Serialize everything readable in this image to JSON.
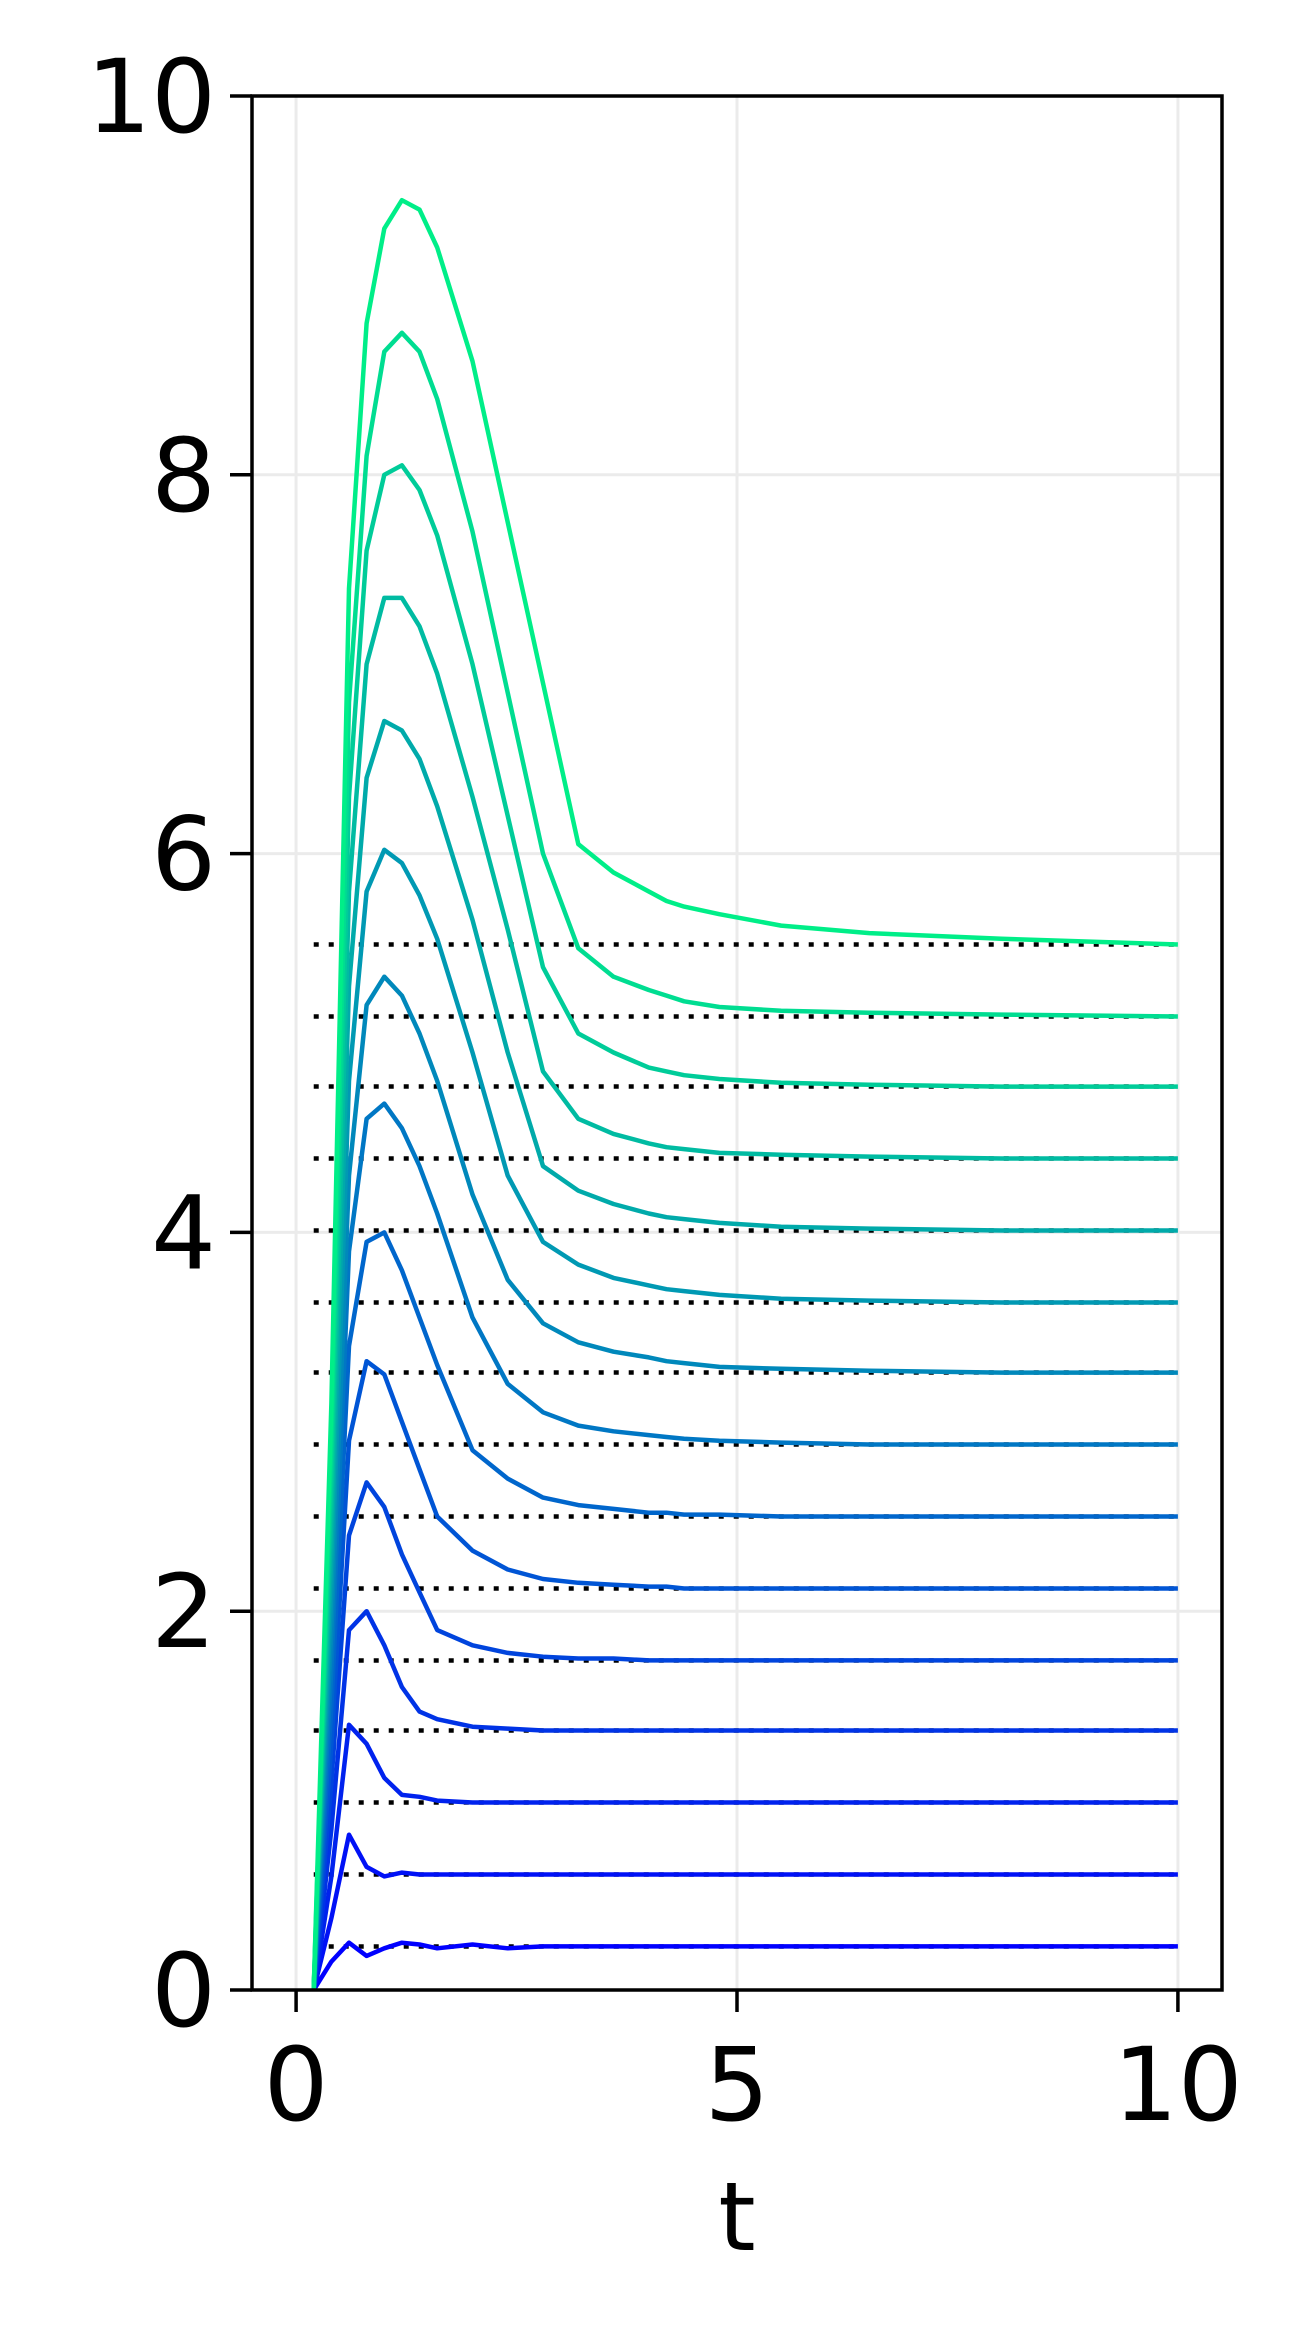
{
  "chart_data": {
    "type": "line",
    "title": "",
    "xlabel": "t",
    "ylabel": "",
    "xlim": [
      -0.5,
      10.5
    ],
    "ylim": [
      0,
      10
    ],
    "xticks": [
      0,
      5,
      10
    ],
    "yticks": [
      0,
      2,
      4,
      6,
      8,
      10
    ],
    "xtick_labels": [
      "0",
      "5",
      "10"
    ],
    "ytick_labels": [
      "0",
      "2",
      "4",
      "6",
      "8",
      "10"
    ],
    "grid": true,
    "legend": "none",
    "colormap": "winter (blue to green)",
    "reference_style": "black dotted horizontal lines from t=0.2 to t=10",
    "t": [
      0.2,
      0.4,
      0.6,
      0.8,
      1.0,
      1.2,
      1.4,
      1.6,
      2.0,
      2.4,
      2.8,
      3.2,
      3.6,
      4.0,
      4.2,
      4.4,
      4.8,
      5.5,
      6.5,
      8.0,
      10.0
    ],
    "series": [
      {
        "target": 0.23,
        "color": "#0000ff",
        "values": [
          0.0,
          0.15,
          0.25,
          0.18,
          0.22,
          0.25,
          0.24,
          0.22,
          0.24,
          0.22,
          0.23,
          0.23,
          0.23,
          0.23,
          0.23,
          0.23,
          0.23,
          0.23,
          0.23,
          0.23,
          0.23
        ]
      },
      {
        "target": 0.61,
        "color": "#0011f6",
        "values": [
          0.0,
          0.38,
          0.82,
          0.65,
          0.6,
          0.62,
          0.61,
          0.61,
          0.61,
          0.61,
          0.61,
          0.61,
          0.61,
          0.61,
          0.61,
          0.61,
          0.61,
          0.61,
          0.61,
          0.61,
          0.61
        ]
      },
      {
        "target": 0.99,
        "color": "#0022ee",
        "values": [
          0.0,
          0.6,
          1.4,
          1.3,
          1.12,
          1.03,
          1.02,
          1.0,
          0.99,
          0.99,
          0.99,
          0.99,
          0.99,
          0.99,
          0.99,
          0.99,
          0.99,
          0.99,
          0.99,
          0.99,
          0.99
        ]
      },
      {
        "target": 1.37,
        "color": "#0033e6",
        "values": [
          0.0,
          0.85,
          1.9,
          2.0,
          1.82,
          1.6,
          1.47,
          1.43,
          1.39,
          1.38,
          1.37,
          1.37,
          1.37,
          1.37,
          1.37,
          1.37,
          1.37,
          1.37,
          1.37,
          1.37,
          1.37
        ]
      },
      {
        "target": 1.74,
        "color": "#0044dd",
        "values": [
          0.0,
          1.1,
          2.4,
          2.68,
          2.55,
          2.3,
          2.1,
          1.9,
          1.82,
          1.78,
          1.76,
          1.75,
          1.75,
          1.74,
          1.74,
          1.74,
          1.74,
          1.74,
          1.74,
          1.74,
          1.74
        ]
      },
      {
        "target": 2.12,
        "color": "#0055d5",
        "values": [
          0.0,
          1.3,
          2.9,
          3.32,
          3.25,
          3.0,
          2.75,
          2.5,
          2.32,
          2.22,
          2.17,
          2.15,
          2.14,
          2.13,
          2.13,
          2.12,
          2.12,
          2.12,
          2.12,
          2.12,
          2.12
        ]
      },
      {
        "target": 2.5,
        "color": "#0066cc",
        "values": [
          0.0,
          1.5,
          3.4,
          3.95,
          4.0,
          3.8,
          3.55,
          3.3,
          2.85,
          2.7,
          2.6,
          2.56,
          2.54,
          2.52,
          2.52,
          2.51,
          2.51,
          2.5,
          2.5,
          2.5,
          2.5
        ]
      },
      {
        "target": 2.88,
        "color": "#0077c4",
        "values": [
          0.0,
          1.7,
          3.9,
          4.6,
          4.68,
          4.55,
          4.35,
          4.1,
          3.55,
          3.2,
          3.05,
          2.98,
          2.95,
          2.93,
          2.92,
          2.91,
          2.9,
          2.89,
          2.88,
          2.88,
          2.88
        ]
      },
      {
        "target": 3.26,
        "color": "#0088bb",
        "values": [
          0.0,
          1.9,
          4.3,
          5.2,
          5.35,
          5.25,
          5.05,
          4.8,
          4.2,
          3.75,
          3.52,
          3.42,
          3.37,
          3.34,
          3.32,
          3.31,
          3.29,
          3.28,
          3.27,
          3.26,
          3.26
        ]
      },
      {
        "target": 3.63,
        "color": "#0099b3",
        "values": [
          0.0,
          2.1,
          4.8,
          5.8,
          6.02,
          5.95,
          5.78,
          5.55,
          4.95,
          4.3,
          3.95,
          3.83,
          3.76,
          3.72,
          3.7,
          3.69,
          3.67,
          3.65,
          3.64,
          3.63,
          3.63
        ]
      },
      {
        "target": 4.01,
        "color": "#00aaaa",
        "values": [
          0.0,
          2.3,
          5.3,
          6.4,
          6.7,
          6.65,
          6.5,
          6.25,
          5.65,
          4.95,
          4.35,
          4.22,
          4.15,
          4.1,
          4.08,
          4.07,
          4.05,
          4.03,
          4.02,
          4.01,
          4.01
        ]
      },
      {
        "target": 4.39,
        "color": "#00bba2",
        "values": [
          0.0,
          2.5,
          5.8,
          7.0,
          7.35,
          7.35,
          7.2,
          6.95,
          6.3,
          5.6,
          4.85,
          4.6,
          4.52,
          4.47,
          4.45,
          4.44,
          4.42,
          4.41,
          4.4,
          4.39,
          4.39
        ]
      },
      {
        "target": 4.77,
        "color": "#00cc99",
        "values": [
          0.0,
          2.7,
          6.3,
          7.6,
          8.0,
          8.05,
          7.92,
          7.68,
          7.0,
          6.2,
          5.4,
          5.05,
          4.95,
          4.87,
          4.85,
          4.83,
          4.81,
          4.79,
          4.78,
          4.77,
          4.77
        ]
      },
      {
        "target": 5.14,
        "color": "#00dd91",
        "values": [
          0.0,
          2.9,
          6.8,
          8.1,
          8.65,
          8.75,
          8.65,
          8.4,
          7.7,
          6.85,
          6.0,
          5.5,
          5.35,
          5.28,
          5.25,
          5.22,
          5.19,
          5.17,
          5.16,
          5.15,
          5.14
        ]
      },
      {
        "target": 5.52,
        "color": "#00ee88",
        "values": [
          0.0,
          3.1,
          7.4,
          8.8,
          9.3,
          9.45,
          9.4,
          9.2,
          8.6,
          7.75,
          6.9,
          6.05,
          5.9,
          5.8,
          5.75,
          5.72,
          5.68,
          5.62,
          5.58,
          5.55,
          5.52
        ]
      }
    ]
  }
}
